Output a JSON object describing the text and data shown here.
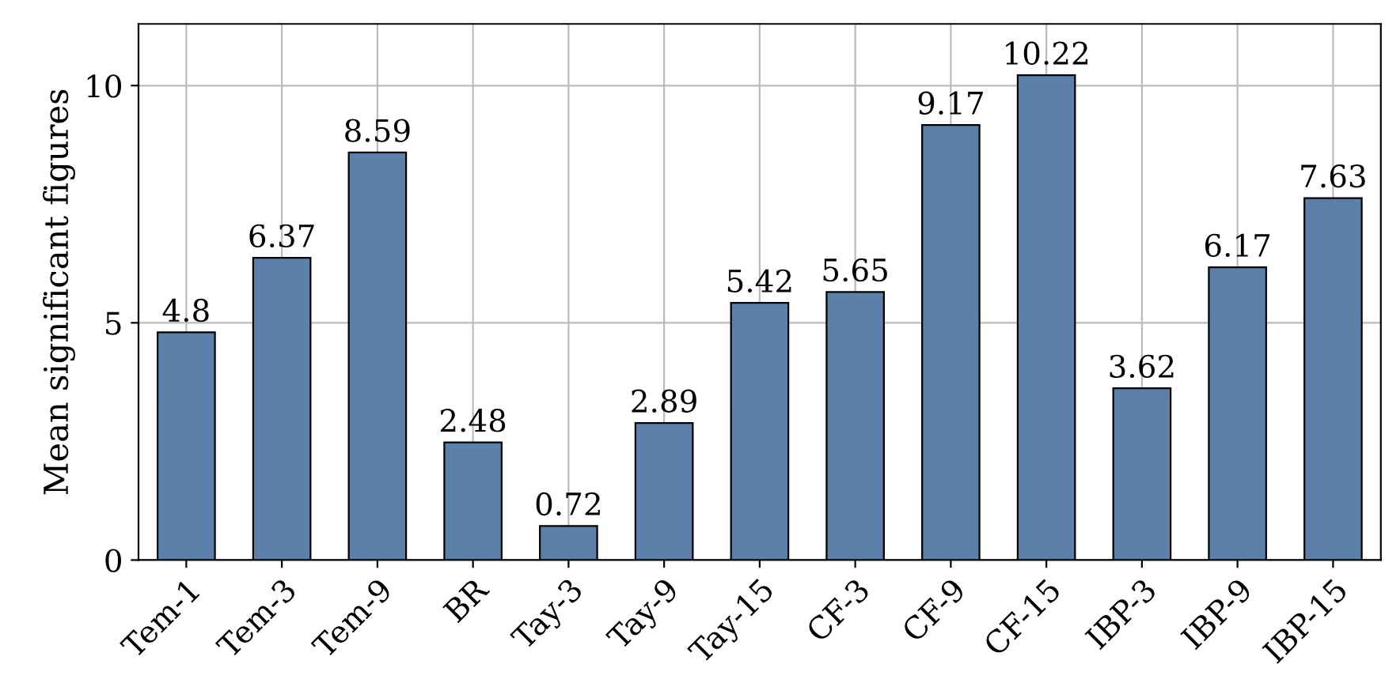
{
  "chart_data": {
    "type": "bar",
    "ylabel": "Mean significant figures",
    "categories": [
      "Tem-1",
      "Tem-3",
      "Tem-9",
      "BR",
      "Tay-3",
      "Tay-9",
      "Tay-15",
      "CF-3",
      "CF-9",
      "CF-15",
      "IBP-3",
      "IBP-9",
      "IBP-15"
    ],
    "values": [
      4.8,
      6.37,
      8.59,
      2.48,
      0.72,
      2.89,
      5.42,
      5.65,
      9.17,
      10.22,
      3.62,
      6.17,
      7.63
    ],
    "color": "#5b80aa",
    "ylim": [
      0,
      11.3
    ],
    "yticks": [
      0,
      5,
      10
    ],
    "grid": true,
    "data_labels": true
  }
}
